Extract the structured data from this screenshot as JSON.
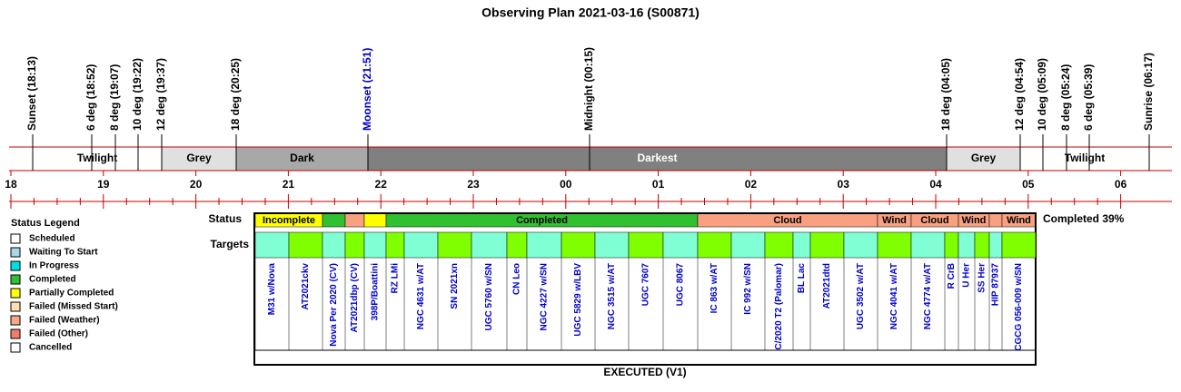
{
  "header": {
    "title": "Observing Plan 2021-03-16 (S00871)"
  },
  "events": [
    {
      "label": "Sunset (18:13)",
      "color": "#000000"
    },
    {
      "label": "6 deg (18:52)",
      "color": "#000000"
    },
    {
      "label": "8 deg (19:07)",
      "color": "#000000"
    },
    {
      "label": "10 deg (19:22)",
      "color": "#000000"
    },
    {
      "label": "12 deg (19:37)",
      "color": "#000000"
    },
    {
      "label": "18 deg (20:25)",
      "color": "#000000"
    },
    {
      "label": "Moonset (21:51)",
      "color": "#0000cc"
    },
    {
      "label": "Midnight (00:15)",
      "color": "#000000"
    },
    {
      "label": "18 deg (04:05)",
      "color": "#000000"
    },
    {
      "label": "12 deg (04:54)",
      "color": "#000000"
    },
    {
      "label": "10 deg (05:09)",
      "color": "#000000"
    },
    {
      "label": "8 deg (05:24)",
      "color": "#000000"
    },
    {
      "label": "6 deg (05:39)",
      "color": "#000000"
    },
    {
      "label": "Sunrise (06:17)",
      "color": "#000000"
    }
  ],
  "periods": [
    {
      "label": "Twilight",
      "color": "#ffffff",
      "text_color": "#000000"
    },
    {
      "label": "Grey",
      "color": "#e0e0e0",
      "text_color": "#000000"
    },
    {
      "label": "Dark",
      "color": "#a8a8a8",
      "text_color": "#000000"
    },
    {
      "label": "Darkest",
      "color": "#808080",
      "text_color": "#ffffff"
    },
    {
      "label": "Grey",
      "color": "#e0e0e0",
      "text_color": "#000000"
    },
    {
      "label": "Twilight",
      "color": "#ffffff",
      "text_color": "#000000"
    }
  ],
  "hours": [
    "18",
    "19",
    "20",
    "21",
    "22",
    "23",
    "00",
    "01",
    "02",
    "03",
    "04",
    "05",
    "06"
  ],
  "legend": {
    "title": "Status Legend",
    "items": [
      {
        "label": "Scheduled",
        "color": "#ffffff"
      },
      {
        "label": "Waiting To Start",
        "color": "#a8d8e8"
      },
      {
        "label": "In Progress",
        "color": "#00e0e0"
      },
      {
        "label": "Completed",
        "color": "#30c030"
      },
      {
        "label": "Partially Completed",
        "color": "#ffff00"
      },
      {
        "label": "Failed (Missed Start)",
        "color": "#fde0b0"
      },
      {
        "label": "Failed (Weather)",
        "color": "#f8a888"
      },
      {
        "label": "Failed (Other)",
        "color": "#f07c6c"
      },
      {
        "label": "Cancelled",
        "color": "#ffffff"
      }
    ]
  },
  "status_label": "Status",
  "targets_label": "Targets",
  "summary": "Completed 39%",
  "footer": "EXECUTED (V1)",
  "status": [
    {
      "label": "Incomplete",
      "color": "#ffff00"
    },
    {
      "color": "#30c030"
    },
    {
      "color": "#f8a080"
    },
    {
      "color": "#ffff00"
    },
    {
      "label": "Completed",
      "color": "#30c030"
    },
    {
      "label": "Cloud",
      "color": "#f8a080"
    },
    {
      "label": "Wind",
      "color": "#f8a080"
    },
    {
      "label": "Cloud",
      "color": "#f8a080"
    },
    {
      "label": "Wind",
      "color": "#f8a080"
    },
    {
      "color": "#f8a080"
    },
    {
      "label": "Wind",
      "color": "#f8a080"
    }
  ],
  "targets": [
    {
      "name": "M31 w/Nova",
      "color": "#80ffd4"
    },
    {
      "name": "AT2021ckv",
      "color": "#80ff00"
    },
    {
      "name": "Nova Per 2020 (CV)",
      "color": "#80ffd4"
    },
    {
      "name": "AT2021dbp (CV)",
      "color": "#80ff00"
    },
    {
      "name": "398P/Boattini",
      "color": "#80ffd4"
    },
    {
      "name": "RZ LMi",
      "color": "#80ff00"
    },
    {
      "name": "NGC 4631 w/AT",
      "color": "#80ffd4"
    },
    {
      "name": "SN 2021xn",
      "color": "#80ff00"
    },
    {
      "name": "UGC 5760 w/SN",
      "color": "#80ffd4"
    },
    {
      "name": "CN Leo",
      "color": "#80ff00"
    },
    {
      "name": "NGC 4227 w/SN",
      "color": "#80ffd4"
    },
    {
      "name": "UGC 5829 w/LBV",
      "color": "#80ff00"
    },
    {
      "name": "NGC 3515 w/AT",
      "color": "#80ffd4"
    },
    {
      "name": "UGC 7607",
      "color": "#80ff00"
    },
    {
      "name": "UGC 8067",
      "color": "#80ffd4"
    },
    {
      "name": "IC 863 w/AT",
      "color": "#80ff00"
    },
    {
      "name": "IC 992 w/SN",
      "color": "#80ffd4"
    },
    {
      "name": "C/2020 T2 (Palomar)",
      "color": "#80ff00"
    },
    {
      "name": "BL Lac",
      "color": "#80ffd4"
    },
    {
      "name": "AT2021dtd",
      "color": "#80ff00"
    },
    {
      "name": "UGC 3502 w/AT",
      "color": "#80ffd4"
    },
    {
      "name": "NGC 4041 w/AT",
      "color": "#80ff00"
    },
    {
      "name": "NGC 4774 w/AT",
      "color": "#80ffd4"
    },
    {
      "name": "R CrB",
      "color": "#80ff00"
    },
    {
      "name": "U Her",
      "color": "#80ffd4"
    },
    {
      "name": "SS Her",
      "color": "#80ff00"
    },
    {
      "name": "HIP 87937",
      "color": "#80ffd4"
    },
    {
      "name": "CGCG 056-009 w/SN",
      "color": "#80ff00"
    }
  ]
}
